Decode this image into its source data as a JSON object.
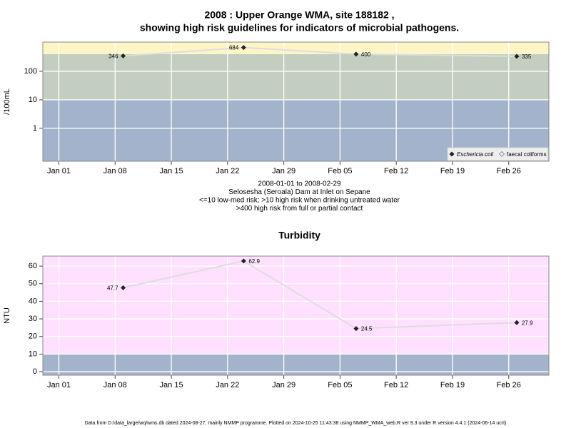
{
  "footnote": "Data from D:/data_large/wq/wms.db dated 2024-08-27, mainly NMMP programme. Plotted on 2024-10-25 11:43:38 using NMMP_WMA_web.R ver 9.3 under R version 4.4.1 (2024-06-14 ucrt)",
  "chart_data": [
    {
      "type": "line",
      "title": [
        "2008 : Upper Orange WMA, site 188182 ,",
        "showing high risk guidelines for indicators of microbial pathogens."
      ],
      "subtitle": [
        "2008-01-01 to 2008-02-29",
        "Selosesha (Seroala) Dam at Inlet on Sepane",
        "<=10 low-med risk; >10 high risk when drinking untreated water",
        ">400 high risk from full or partial contact"
      ],
      "y_label": "/100mL",
      "log_scale": true,
      "x": [
        "2008-01-09",
        "2008-01-24",
        "2008-02-07",
        "2008-02-27"
      ],
      "series": [
        {
          "name": "Eschericia coli",
          "color": "#222222",
          "line_color": "#dddddd",
          "values": [
            346,
            684,
            400,
            335
          ]
        },
        {
          "name": "faecal coliforms",
          "color": "#eeeeee",
          "line_color": "#dddddd",
          "values": [
            null,
            null,
            null,
            null
          ]
        }
      ],
      "bands": [
        {
          "from": 0.07,
          "to": 10,
          "color": "#a3b3cc"
        },
        {
          "from": 10,
          "to": 400,
          "color": "#c3cdc0"
        },
        {
          "from": 400,
          "to": 1060,
          "color": "#fdf5c5"
        }
      ],
      "xlim": [
        "2007-12-30",
        "2008-03-02"
      ],
      "xticks": [
        {
          "value": "2008-01-01",
          "label": "Jan 01"
        },
        {
          "value": "2008-01-08",
          "label": "Jan 08"
        },
        {
          "value": "2008-01-15",
          "label": "Jan 15"
        },
        {
          "value": "2008-01-22",
          "label": "Jan 22"
        },
        {
          "value": "2008-01-29",
          "label": "Jan 29"
        },
        {
          "value": "2008-02-05",
          "label": "Feb 05"
        },
        {
          "value": "2008-02-12",
          "label": "Feb 12"
        },
        {
          "value": "2008-02-19",
          "label": "Feb 19"
        },
        {
          "value": "2008-02-26",
          "label": "Feb 26"
        }
      ],
      "ylim": [
        0.07,
        1060
      ],
      "yticks": [
        1,
        10,
        100
      ],
      "grid": true,
      "legend": "bottom-right"
    },
    {
      "type": "line",
      "title": [
        "Turbidity"
      ],
      "y_label": "NTU",
      "log_scale": false,
      "x": [
        "2008-01-09",
        "2008-01-24",
        "2008-02-07",
        "2008-02-27"
      ],
      "series": [
        {
          "name": null,
          "color": "#222222",
          "line_color": "#dddddd",
          "values": [
            47.7,
            62.9,
            24.5,
            27.9
          ]
        }
      ],
      "bands": [
        {
          "from": -2,
          "to": 10,
          "color": "#a3b3cc"
        },
        {
          "from": 10,
          "to": 65.7,
          "color": "#ffe0ff"
        }
      ],
      "xlim": [
        "2007-12-30",
        "2008-03-02"
      ],
      "xticks": [
        {
          "value": "2008-01-01",
          "label": "Jan 01"
        },
        {
          "value": "2008-01-08",
          "label": "Jan 08"
        },
        {
          "value": "2008-01-15",
          "label": "Jan 15"
        },
        {
          "value": "2008-01-22",
          "label": "Jan 22"
        },
        {
          "value": "2008-01-29",
          "label": "Jan 29"
        },
        {
          "value": "2008-02-05",
          "label": "Feb 05"
        },
        {
          "value": "2008-02-12",
          "label": "Feb 12"
        },
        {
          "value": "2008-02-19",
          "label": "Feb 19"
        },
        {
          "value": "2008-02-26",
          "label": "Feb 26"
        }
      ],
      "ylim": [
        -2,
        65.7
      ],
      "yticks": [
        0,
        10,
        20,
        30,
        40,
        50,
        60
      ],
      "grid": true
    }
  ]
}
